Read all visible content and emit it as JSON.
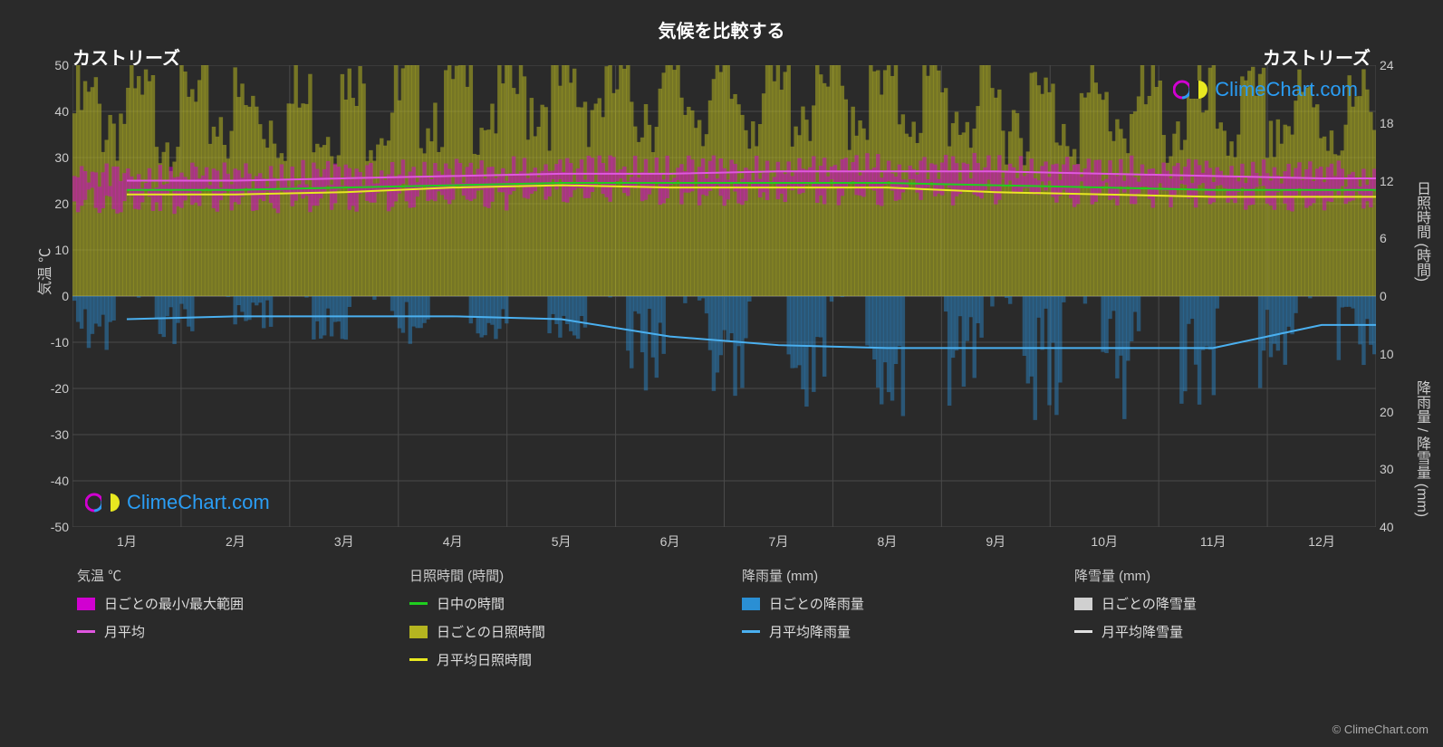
{
  "title": "気候を比較する",
  "location_left": "カストリーズ",
  "location_right": "カストリーズ",
  "watermark_text": "ClimeChart.com",
  "copyright": "© ClimeChart.com",
  "colors": {
    "background": "#2a2a2a",
    "grid": "#4a4a4a",
    "text": "#e0e0e0",
    "temp_range": "#d100d1",
    "temp_avg": "#e056e0",
    "day_hours": "#1fcf1f",
    "sun_daily": "#b5b520",
    "sun_avg": "#e8e820",
    "rain_daily": "#2a8fd4",
    "rain_avg": "#4ab0f0",
    "snow_daily": "#d0d0d0",
    "snow_avg": "#e0e0e0",
    "watermark": "#2a9df4"
  },
  "axes": {
    "left_label": "気温 ℃",
    "right_label_1": "日照時間 (時間)",
    "right_label_2": "降雨量 / 降雪量 (mm)",
    "y_left": {
      "min": -50,
      "max": 50,
      "step": 10,
      "ticks": [
        50,
        40,
        30,
        20,
        10,
        0,
        -10,
        -20,
        -30,
        -40,
        -50
      ]
    },
    "y_right_top": {
      "ticks": [
        24,
        18,
        12,
        6,
        0
      ],
      "range": [
        0,
        24
      ]
    },
    "y_right_bottom": {
      "ticks": [
        0,
        10,
        20,
        30,
        40
      ],
      "range": [
        0,
        40
      ]
    },
    "x_labels": [
      "1月",
      "2月",
      "3月",
      "4月",
      "5月",
      "6月",
      "7月",
      "8月",
      "9月",
      "10月",
      "11月",
      "12月"
    ]
  },
  "series": {
    "temp_avg": [
      25.0,
      25.0,
      25.5,
      26.0,
      26.5,
      26.5,
      27.0,
      27.0,
      27.0,
      26.5,
      26.0,
      25.5
    ],
    "temp_min": [
      22.0,
      22.0,
      22.5,
      23.0,
      24.0,
      24.0,
      24.0,
      24.0,
      24.0,
      23.5,
      23.0,
      22.5
    ],
    "temp_max": [
      27.5,
      27.5,
      28.0,
      28.5,
      29.0,
      29.0,
      29.0,
      29.5,
      29.5,
      29.0,
      28.5,
      28.0
    ],
    "day_hours": [
      23.0,
      23.0,
      23.5,
      24.0,
      24.5,
      24.5,
      24.5,
      24.5,
      24.0,
      23.5,
      23.0,
      23.0
    ],
    "sun_avg": [
      22.0,
      22.0,
      22.5,
      23.5,
      24.0,
      23.5,
      23.5,
      23.5,
      22.5,
      22.0,
      21.5,
      21.5
    ],
    "rain_avg_mm": [
      4.0,
      3.5,
      3.5,
      3.5,
      4.0,
      7.0,
      8.5,
      9.0,
      9.0,
      9.0,
      9.0,
      5.0
    ]
  },
  "legend": {
    "groups": [
      {
        "title": "気温 ℃",
        "items": [
          {
            "type": "box",
            "color_key": "temp_range",
            "label": "日ごとの最小/最大範囲"
          },
          {
            "type": "line",
            "color_key": "temp_avg",
            "label": "月平均"
          }
        ]
      },
      {
        "title": "日照時間 (時間)",
        "items": [
          {
            "type": "line",
            "color_key": "day_hours",
            "label": "日中の時間"
          },
          {
            "type": "box",
            "color_key": "sun_daily",
            "label": "日ごとの日照時間"
          },
          {
            "type": "line",
            "color_key": "sun_avg",
            "label": "月平均日照時間"
          }
        ]
      },
      {
        "title": "降雨量 (mm)",
        "items": [
          {
            "type": "box",
            "color_key": "rain_daily",
            "label": "日ごとの降雨量"
          },
          {
            "type": "line",
            "color_key": "rain_avg",
            "label": "月平均降雨量"
          }
        ]
      },
      {
        "title": "降雪量 (mm)",
        "items": [
          {
            "type": "box",
            "color_key": "snow_daily",
            "label": "日ごとの降雪量"
          },
          {
            "type": "line",
            "color_key": "snow_avg",
            "label": "月平均降雪量"
          }
        ]
      }
    ]
  }
}
